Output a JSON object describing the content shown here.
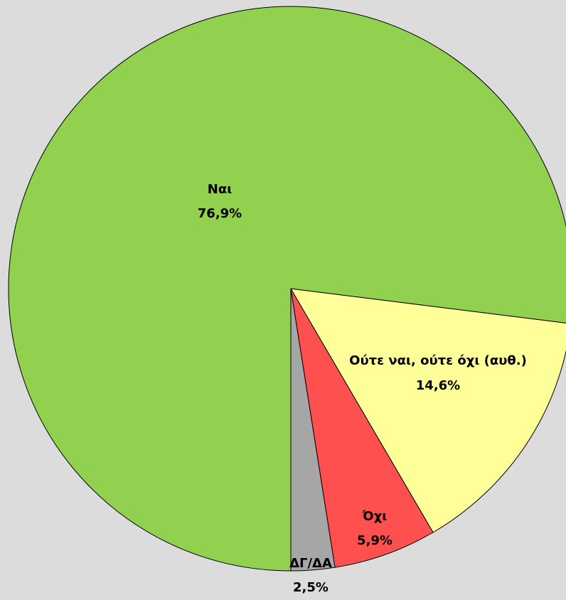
{
  "chart_data": {
    "type": "pie",
    "categories": [
      "ΔΓ/ΔΑ",
      "Όχι",
      "Ούτε ναι, ούτε όχι (αυθ.)",
      "Ναι"
    ],
    "values": [
      2.5,
      5.9,
      14.6,
      76.9
    ],
    "value_labels": [
      "2,5%",
      "5,9%",
      "14,6%",
      "76,9%"
    ],
    "colors": [
      "#a6a6a6",
      "#ff5050",
      "#ffff99",
      "#92d050"
    ]
  }
}
